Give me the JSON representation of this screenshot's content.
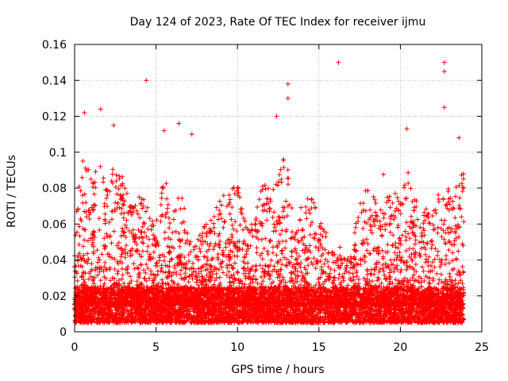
{
  "chart_data": {
    "type": "scatter",
    "title": "Day 124 of 2023, Rate Of TEC Index for receiver ijmu",
    "xlabel": "GPS time / hours",
    "ylabel": "ROTI / TECUs",
    "xlim": [
      0,
      25
    ],
    "ylim": [
      0,
      0.16
    ],
    "x_ticks": [
      {
        "value": 0,
        "label": "0"
      },
      {
        "value": 5,
        "label": "5"
      },
      {
        "value": 10,
        "label": "10"
      },
      {
        "value": 15,
        "label": "15"
      },
      {
        "value": 20,
        "label": "20"
      },
      {
        "value": 25,
        "label": "25"
      }
    ],
    "y_ticks": [
      {
        "value": 0,
        "label": "0"
      },
      {
        "value": 0.02,
        "label": "0.02"
      },
      {
        "value": 0.04,
        "label": "0.04"
      },
      {
        "value": 0.06,
        "label": "0.06"
      },
      {
        "value": 0.08,
        "label": "0.08"
      },
      {
        "value": 0.1,
        "label": "0.1"
      },
      {
        "value": 0.12,
        "label": "0.12"
      },
      {
        "value": 0.14,
        "label": "0.14"
      },
      {
        "value": 0.16,
        "label": "0.16"
      }
    ],
    "grid": true,
    "marker": "+",
    "series": [
      {
        "name": "ROTI",
        "color": "#ff0000",
        "notable_points": [
          {
            "x": 4.4,
            "y": 0.14
          },
          {
            "x": 13.1,
            "y": 0.138
          },
          {
            "x": 16.2,
            "y": 0.15
          },
          {
            "x": 22.7,
            "y": 0.15
          },
          {
            "x": 22.7,
            "y": 0.145
          },
          {
            "x": 22.7,
            "y": 0.125
          },
          {
            "x": 0.6,
            "y": 0.122
          },
          {
            "x": 1.6,
            "y": 0.124
          },
          {
            "x": 2.4,
            "y": 0.115
          },
          {
            "x": 6.4,
            "y": 0.116
          },
          {
            "x": 12.4,
            "y": 0.12
          },
          {
            "x": 13.1,
            "y": 0.13
          },
          {
            "x": 20.4,
            "y": 0.113
          },
          {
            "x": 7.2,
            "y": 0.11
          },
          {
            "x": 5.5,
            "y": 0.112
          },
          {
            "x": 23.6,
            "y": 0.108
          }
        ],
        "activity_envelope": [
          {
            "x": 0.0,
            "y": 0.06
          },
          {
            "x": 0.5,
            "y": 0.1
          },
          {
            "x": 1.0,
            "y": 0.09
          },
          {
            "x": 1.5,
            "y": 0.1
          },
          {
            "x": 2.0,
            "y": 0.08
          },
          {
            "x": 2.5,
            "y": 0.1
          },
          {
            "x": 3.0,
            "y": 0.085
          },
          {
            "x": 3.5,
            "y": 0.07
          },
          {
            "x": 4.0,
            "y": 0.08
          },
          {
            "x": 4.5,
            "y": 0.07
          },
          {
            "x": 5.0,
            "y": 0.06
          },
          {
            "x": 5.5,
            "y": 0.09
          },
          {
            "x": 6.0,
            "y": 0.065
          },
          {
            "x": 6.5,
            "y": 0.08
          },
          {
            "x": 7.0,
            "y": 0.06
          },
          {
            "x": 7.5,
            "y": 0.05
          },
          {
            "x": 8.0,
            "y": 0.06
          },
          {
            "x": 8.5,
            "y": 0.065
          },
          {
            "x": 9.0,
            "y": 0.075
          },
          {
            "x": 9.5,
            "y": 0.08
          },
          {
            "x": 10.0,
            "y": 0.085
          },
          {
            "x": 10.5,
            "y": 0.065
          },
          {
            "x": 11.0,
            "y": 0.06
          },
          {
            "x": 11.5,
            "y": 0.085
          },
          {
            "x": 12.0,
            "y": 0.08
          },
          {
            "x": 12.5,
            "y": 0.09
          },
          {
            "x": 13.0,
            "y": 0.1
          },
          {
            "x": 13.5,
            "y": 0.06
          },
          {
            "x": 14.0,
            "y": 0.075
          },
          {
            "x": 14.5,
            "y": 0.085
          },
          {
            "x": 15.0,
            "y": 0.07
          },
          {
            "x": 15.5,
            "y": 0.055
          },
          {
            "x": 16.0,
            "y": 0.05
          },
          {
            "x": 16.5,
            "y": 0.045
          },
          {
            "x": 17.0,
            "y": 0.045
          },
          {
            "x": 17.5,
            "y": 0.075
          },
          {
            "x": 18.0,
            "y": 0.08
          },
          {
            "x": 18.5,
            "y": 0.075
          },
          {
            "x": 19.0,
            "y": 0.09
          },
          {
            "x": 19.5,
            "y": 0.08
          },
          {
            "x": 20.0,
            "y": 0.075
          },
          {
            "x": 20.5,
            "y": 0.09
          },
          {
            "x": 21.0,
            "y": 0.075
          },
          {
            "x": 21.5,
            "y": 0.07
          },
          {
            "x": 22.0,
            "y": 0.065
          },
          {
            "x": 22.5,
            "y": 0.09
          },
          {
            "x": 23.0,
            "y": 0.08
          },
          {
            "x": 23.5,
            "y": 0.085
          },
          {
            "x": 23.9,
            "y": 0.09
          }
        ],
        "baseline_range": [
          0.005,
          0.025
        ]
      }
    ]
  }
}
